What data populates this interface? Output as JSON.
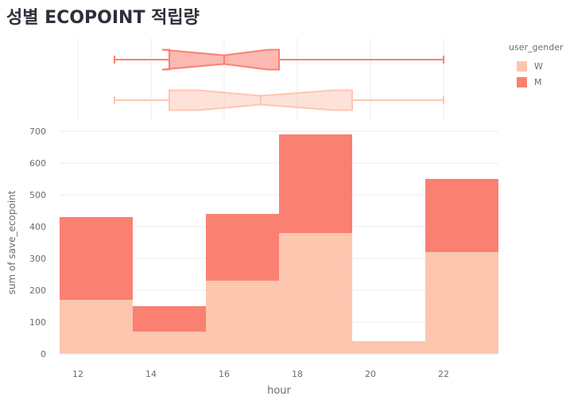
{
  "page": {
    "title": "성별 ECOPOINT 적립량"
  },
  "chart_data": {
    "type": "bar",
    "subtype": "stacked-histogram-with-marginal-boxplot",
    "x_bins": [
      {
        "start": 11.5,
        "end": 13.5
      },
      {
        "start": 13.5,
        "end": 15.5
      },
      {
        "start": 15.5,
        "end": 17.5
      },
      {
        "start": 17.5,
        "end": 19.5
      },
      {
        "start": 19.5,
        "end": 21.5
      },
      {
        "start": 21.5,
        "end": 23.5
      }
    ],
    "series": [
      {
        "name": "W",
        "color": "#fdc6af",
        "values": [
          170,
          70,
          230,
          380,
          40,
          320
        ]
      },
      {
        "name": "M",
        "color": "#fa8072",
        "values": [
          260,
          80,
          210,
          310,
          0,
          230
        ]
      }
    ],
    "boxplots": [
      {
        "name": "M",
        "color": "#fa8072",
        "min": 13,
        "q1": 14.5,
        "median": 16,
        "q3": 17.5,
        "max": 22,
        "notch_low": 14.3,
        "notch_high": 17.2
      },
      {
        "name": "W",
        "color": "#fdc6af",
        "min": 13,
        "q1": 14.5,
        "median": 17,
        "q3": 19.5,
        "max": 22,
        "notch_low": 15.3,
        "notch_high": 19.0
      }
    ],
    "xlabel": "hour",
    "ylabel": "sum of save_ecopoint",
    "xlim": [
      11.5,
      23.5
    ],
    "ylim": [
      0,
      700
    ],
    "x_ticks": [
      12,
      14,
      16,
      18,
      20,
      22
    ],
    "y_ticks": [
      0,
      100,
      200,
      300,
      400,
      500,
      600,
      700
    ],
    "grid": true,
    "legend": {
      "title": "user_gender",
      "position": "top-right"
    }
  }
}
